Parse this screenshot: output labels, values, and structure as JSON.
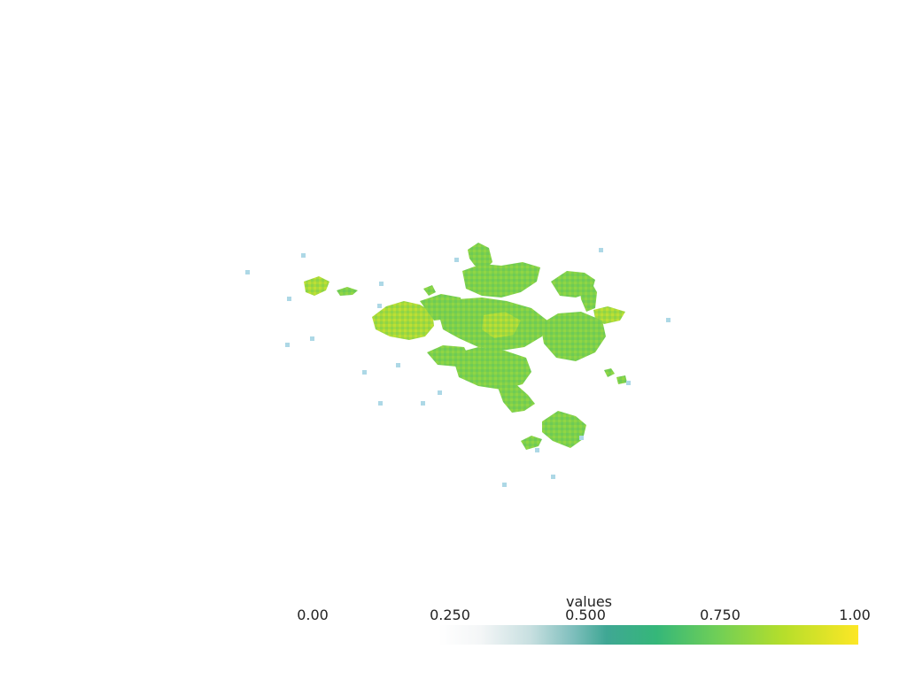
{
  "render": {
    "cluster_color_main": "#7ed04b",
    "cluster_color_light": "#b6dd35",
    "cluster_color_dark": "#5ec563",
    "isolated_point_color": "#add8e6"
  },
  "scalar_bar": {
    "title": "values",
    "ticks": [
      "0.00",
      "0.250",
      "0.500",
      "0.750",
      "1.00"
    ],
    "colormap": "viridis-with-transparent-low"
  }
}
